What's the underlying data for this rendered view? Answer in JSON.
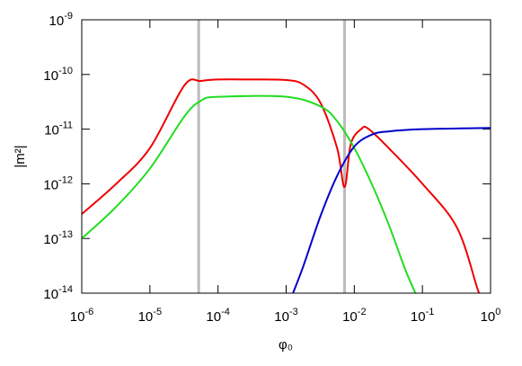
{
  "chart_data": {
    "type": "line",
    "xlabel": "φ₀",
    "ylabel": "|m²|",
    "xscale": "log",
    "yscale": "log",
    "xlim": [
      1e-06,
      1
    ],
    "ylim": [
      1e-14,
      1e-09
    ],
    "xticks": [
      {
        "value": 1e-06,
        "label": "10-6"
      },
      {
        "value": 1e-05,
        "label": "10-5"
      },
      {
        "value": 0.0001,
        "label": "10-4"
      },
      {
        "value": 0.001,
        "label": "10-3"
      },
      {
        "value": 0.01,
        "label": "10-2"
      },
      {
        "value": 0.1,
        "label": "10-1"
      },
      {
        "value": 1,
        "label": "100"
      }
    ],
    "yticks": [
      {
        "value": 1e-14,
        "label": "10-14"
      },
      {
        "value": 1e-13,
        "label": "10-13"
      },
      {
        "value": 1e-12,
        "label": "10-12"
      },
      {
        "value": 1e-11,
        "label": "10-11"
      },
      {
        "value": 1e-10,
        "label": "10-10"
      },
      {
        "value": 1e-09,
        "label": "10-9"
      }
    ],
    "vlines": [
      5.2e-05,
      0.0072
    ],
    "vline_color": "#bbbbbb",
    "series": [
      {
        "color": "#ee0000",
        "x": [
          1e-06,
          3.2e-06,
          1e-05,
          3.2e-05,
          5.6e-05,
          0.0001,
          0.00032,
          0.001,
          0.0018,
          0.0032,
          0.0056,
          0.0072,
          0.0089,
          0.0126,
          0.016,
          0.032,
          0.1,
          0.32,
          0.63,
          0.68
        ],
        "values": [
          2.8e-13,
          1e-12,
          4.5e-12,
          6.3e-11,
          7.6e-11,
          8.1e-11,
          8.1e-11,
          7.9e-11,
          6.5e-11,
          3e-11,
          4.5e-12,
          8.7e-13,
          5.4e-12,
          1e-11,
          1.02e-11,
          4.5e-12,
          1e-12,
          1.6e-13,
          1.3e-14,
          1e-14
        ]
      },
      {
        "color": "#22dd22",
        "x": [
          1e-06,
          3.2e-06,
          1e-05,
          3.2e-05,
          5.6e-05,
          0.0001,
          0.001,
          0.0032,
          0.0056,
          0.01,
          0.018,
          0.032,
          0.056,
          0.079
        ],
        "values": [
          1e-13,
          3.8e-13,
          1.9e-12,
          1.7e-11,
          3.3e-11,
          3.9e-11,
          3.9e-11,
          2.6e-11,
          1.4e-11,
          4.5e-12,
          1e-12,
          1.8e-13,
          2.7e-14,
          1e-14
        ]
      },
      {
        "color": "#0000cc",
        "x": [
          0.00126,
          0.0018,
          0.0032,
          0.0056,
          0.01,
          0.018,
          0.032,
          0.1,
          1
        ],
        "values": [
          1e-14,
          3.2e-14,
          2.6e-13,
          1.4e-12,
          4.8e-12,
          7.9e-12,
          9.1e-12,
          1e-11,
          1.05e-11
        ]
      }
    ]
  }
}
